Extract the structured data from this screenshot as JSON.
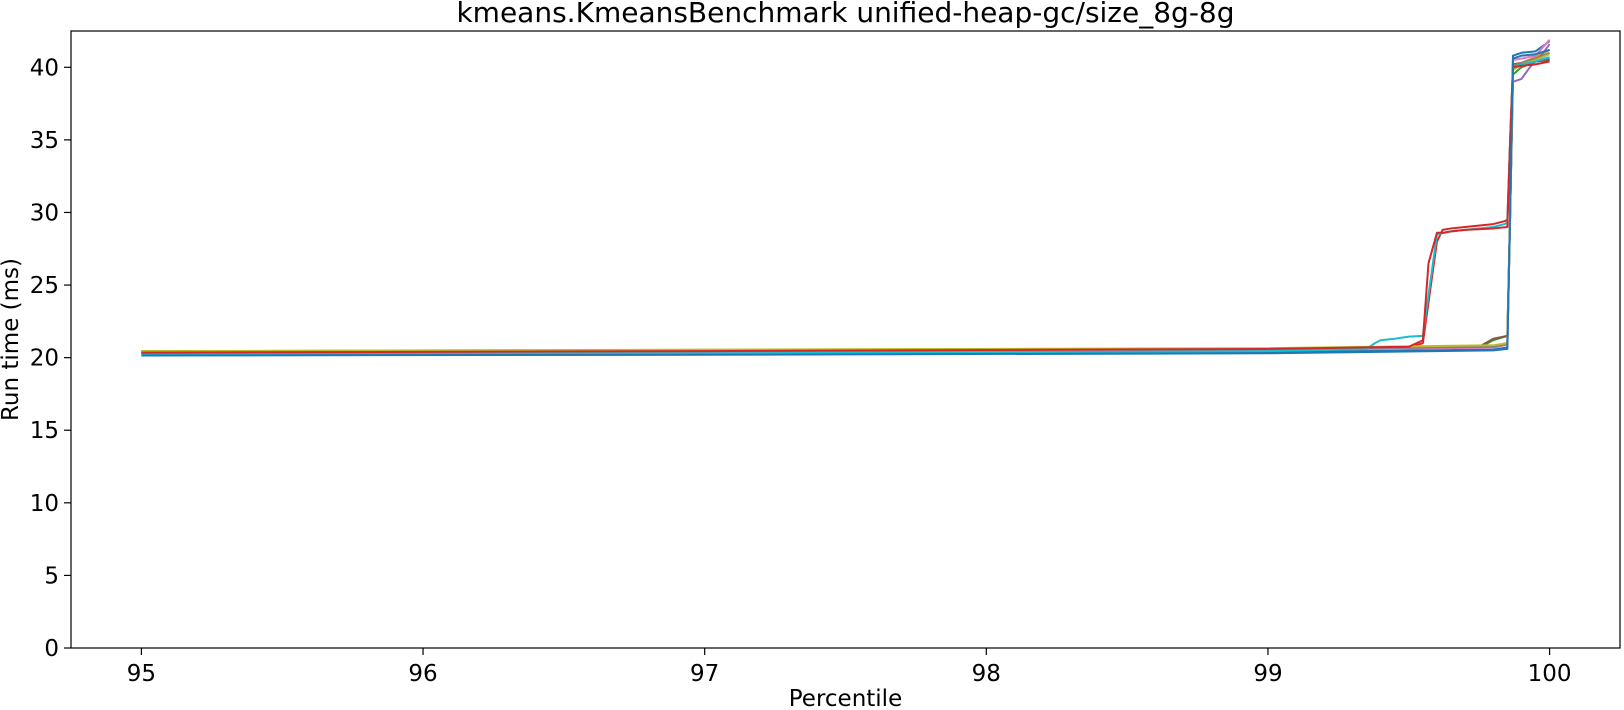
{
  "chart_data": {
    "type": "line",
    "title": "kmeans.KmeansBenchmark unified-heap-gc/size_8g-8g",
    "xlabel": "Percentile",
    "ylabel": "Run time (ms)",
    "xlim": [
      94.75,
      100.25
    ],
    "ylim": [
      0,
      42.5
    ],
    "xticks": [
      95,
      96,
      97,
      98,
      99,
      100
    ],
    "yticks": [
      0,
      5,
      10,
      15,
      20,
      25,
      30,
      35,
      40
    ],
    "grid": false,
    "legend": "none",
    "series": [
      {
        "color": "#1f77b4",
        "x": [
          95,
          97,
          99,
          99.8,
          99.85,
          99.86,
          99.87,
          99.9,
          99.95,
          100
        ],
        "y": [
          20.2,
          20.25,
          20.4,
          20.55,
          20.7,
          30.0,
          40.8,
          41.0,
          41.1,
          41.8
        ]
      },
      {
        "color": "#ff7f0e",
        "x": [
          95,
          97,
          99,
          99.8,
          99.85,
          99.86,
          99.87,
          99.9,
          99.95,
          100
        ],
        "y": [
          20.4,
          20.5,
          20.6,
          20.8,
          21.0,
          30.0,
          40.0,
          40.3,
          40.7,
          41.2
        ]
      },
      {
        "color": "#2ca02c",
        "x": [
          95,
          97,
          99,
          99.75,
          99.8,
          99.85,
          99.86,
          99.87,
          99.9,
          99.95,
          100
        ],
        "y": [
          20.45,
          20.5,
          20.6,
          20.7,
          21.2,
          21.5,
          30.0,
          39.5,
          40.0,
          40.4,
          40.6
        ]
      },
      {
        "color": "#d62728",
        "x": [
          95,
          97,
          99,
          99.5,
          99.55,
          99.6,
          99.62,
          99.65,
          99.7,
          99.8,
          99.84,
          99.85,
          99.86,
          99.87,
          99.9,
          99.95,
          100
        ],
        "y": [
          20.3,
          20.4,
          20.55,
          20.7,
          21.0,
          28.0,
          28.8,
          28.9,
          29.0,
          29.2,
          29.4,
          29.5,
          35.0,
          40.2,
          40.3,
          40.4,
          40.5
        ]
      },
      {
        "color": "#9467bd",
        "x": [
          95,
          97,
          99,
          99.8,
          99.85,
          99.86,
          99.87,
          99.9,
          99.93,
          99.97,
          100
        ],
        "y": [
          20.35,
          20.45,
          20.55,
          20.7,
          20.9,
          30.0,
          39.0,
          39.2,
          40.0,
          40.8,
          41.6
        ]
      },
      {
        "color": "#8c564b",
        "x": [
          95,
          97,
          99,
          99.75,
          99.8,
          99.85,
          99.86,
          99.87,
          99.9,
          99.95,
          100
        ],
        "y": [
          20.4,
          20.5,
          20.6,
          20.75,
          21.3,
          21.5,
          30.0,
          40.2,
          40.3,
          40.4,
          40.5
        ]
      },
      {
        "color": "#e377c2",
        "x": [
          95,
          97,
          99,
          99.8,
          99.85,
          99.86,
          99.87,
          99.9,
          99.95,
          100
        ],
        "y": [
          20.3,
          20.4,
          20.5,
          20.7,
          20.9,
          30.0,
          40.5,
          40.6,
          40.8,
          41.9
        ]
      },
      {
        "color": "#7f7f7f",
        "x": [
          95,
          97,
          99,
          99.8,
          99.85,
          99.86,
          99.87,
          99.9,
          99.95,
          100
        ],
        "y": [
          20.4,
          20.45,
          20.6,
          20.75,
          20.95,
          30.0,
          40.1,
          40.3,
          40.6,
          41.0
        ]
      },
      {
        "color": "#bcbd22",
        "x": [
          95,
          97,
          99,
          99.8,
          99.85,
          99.86,
          99.87,
          99.9,
          99.95,
          100
        ],
        "y": [
          20.45,
          20.55,
          20.65,
          20.85,
          21.0,
          30.0,
          39.8,
          40.2,
          40.5,
          40.9
        ]
      },
      {
        "color": "#17becf",
        "x": [
          95,
          97,
          99,
          99.35,
          99.38,
          99.4,
          99.45,
          99.5,
          99.55,
          99.6,
          99.65,
          99.7,
          99.8,
          99.84,
          99.85,
          99.86,
          99.87,
          99.9,
          99.95,
          100
        ],
        "y": [
          20.25,
          20.3,
          20.45,
          20.6,
          21.0,
          21.2,
          21.3,
          21.45,
          21.5,
          28.5,
          28.7,
          28.8,
          29.0,
          29.2,
          29.3,
          35.0,
          40.0,
          40.2,
          40.4,
          40.7
        ]
      },
      {
        "color": "#d62728",
        "x": [
          95,
          97,
          99,
          99.5,
          99.55,
          99.57,
          99.6,
          99.62,
          99.65,
          99.7,
          99.8,
          99.85,
          99.86,
          99.87,
          99.9,
          99.95,
          100
        ],
        "y": [
          20.35,
          20.45,
          20.6,
          20.75,
          21.2,
          26.5,
          28.6,
          28.6,
          28.7,
          28.8,
          28.9,
          29.0,
          35.0,
          40.0,
          40.1,
          40.2,
          40.4
        ]
      },
      {
        "color": "#1f77b4",
        "x": [
          95,
          97,
          99,
          99.8,
          99.85,
          99.86,
          99.87,
          99.9,
          99.95,
          100
        ],
        "y": [
          20.15,
          20.2,
          20.3,
          20.5,
          20.6,
          30.0,
          40.6,
          40.8,
          40.9,
          41.2
        ]
      }
    ]
  }
}
